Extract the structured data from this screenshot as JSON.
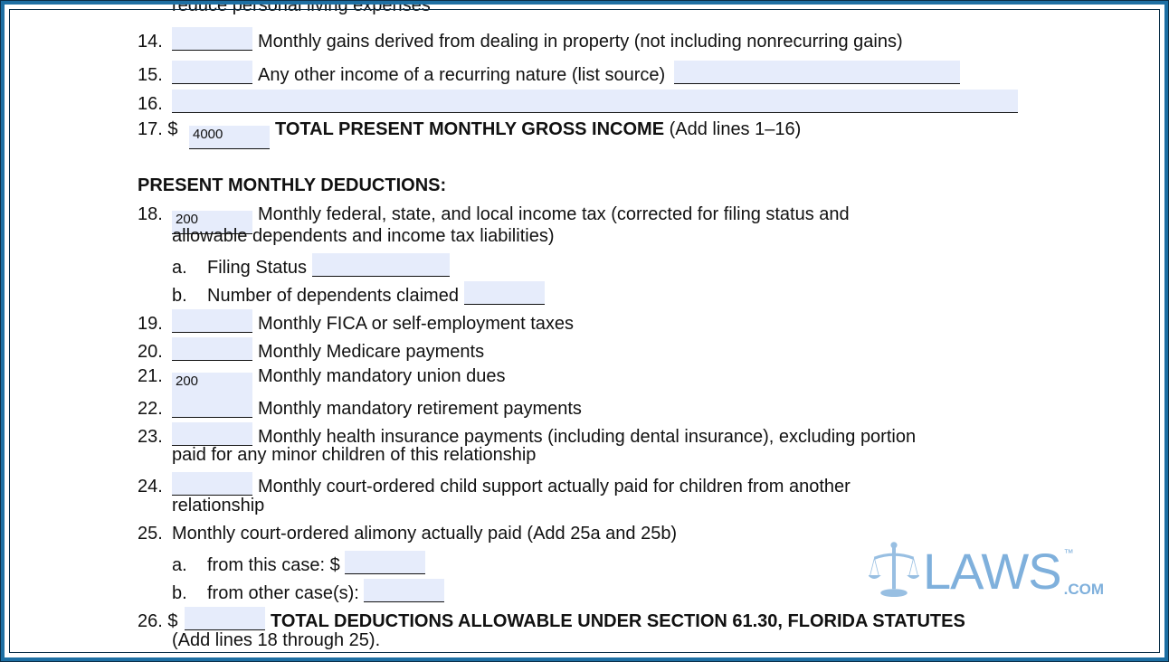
{
  "lines": {
    "l13_tail": "reduce personal living expenses",
    "l14": {
      "num": "14.",
      "text": "Monthly gains derived from dealing in property (not including nonrecurring gains)",
      "value": ""
    },
    "l15": {
      "num": "15.",
      "text": "Any other income of a recurring nature (list source)",
      "value": "",
      "source": ""
    },
    "l16": {
      "num": "16.",
      "value": ""
    },
    "l17": {
      "num": "17. $",
      "value": "4000",
      "bold": "TOTAL PRESENT MONTHLY GROSS INCOME",
      "text": "(Add lines 1–16)"
    },
    "deductions_heading": "PRESENT MONTHLY DEDUCTIONS:",
    "l18": {
      "num": "18.",
      "value": "200",
      "text": "Monthly federal, state, and local income tax (corrected for filing status and",
      "text2": "allowable dependents and income tax liabilities)"
    },
    "l18a": {
      "letter": "a.",
      "text": "Filing Status",
      "value": ""
    },
    "l18b": {
      "letter": "b.",
      "text": "Number of dependents claimed",
      "value": ""
    },
    "l19": {
      "num": "19.",
      "value": "",
      "text": "Monthly FICA or self-employment taxes"
    },
    "l20": {
      "num": "20.",
      "value": "",
      "text": "Monthly Medicare payments"
    },
    "l21": {
      "num": "21.",
      "value": "200",
      "text": "Monthly mandatory union dues"
    },
    "l22": {
      "num": "22.",
      "value": "",
      "text": "Monthly mandatory retirement payments"
    },
    "l23": {
      "num": "23.",
      "value": "",
      "text": "Monthly health insurance payments (including dental insurance), excluding portion",
      "text2": "paid for any minor children of this relationship"
    },
    "l24": {
      "num": "24.",
      "value": "",
      "text": "Monthly court-ordered child support actually paid for children from another",
      "text2": "relationship"
    },
    "l25": {
      "num": "25.",
      "text": "Monthly court-ordered alimony actually paid (Add 25a and 25b)"
    },
    "l25a": {
      "letter": "a.",
      "text": "from this case:  $",
      "value": ""
    },
    "l25b": {
      "letter": "b.",
      "text": "from other case(s):",
      "value": ""
    },
    "l26": {
      "num": "26. $",
      "value": "",
      "bold": "TOTAL DEDUCTIONS ALLOWABLE UNDER SECTION 61.30, FLORIDA STATUTES",
      "text2": "(Add lines 18 through 25)."
    }
  },
  "logo": {
    "text": "LAWS",
    "tm": "™",
    "com": ".COM"
  },
  "colors": {
    "frame": "#1d6fa3",
    "field": "#e6ecfb",
    "logo": "#7fb0dc"
  }
}
